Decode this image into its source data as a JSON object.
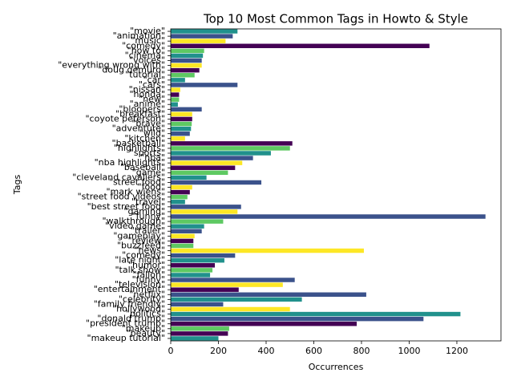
{
  "chart_data": {
    "type": "hbar",
    "title": "Top 10 Most Common Tags in Howto & Style",
    "xlabel": "Occurrences",
    "ylabel": "Tags",
    "categories": [
      "\"movie\"",
      "\"animation\"",
      "\"music\"",
      "\"comedy\"",
      "\"how to\"",
      "\"cinema\"",
      "\"voices\"",
      "\"everything wrong with\"",
      "\"doug demuro\"",
      "\"tutorial\"",
      "\"car\"",
      "\"cars\"",
      "\"nissan\"",
      "\"honda\"",
      "\"new\"",
      "\"anime\"",
      "\"bloopers\"",
      "\"breakfast\"",
      "\"coyote peterson\"",
      "\"brave\"",
      "\"adventure\"",
      "\"wild\"",
      "\"kitchen\"",
      "\"basketball\"",
      "\"highlights\"",
      "\"sports\"",
      "\"nba\"",
      "\"nba highlights\"",
      "\"baseball\"",
      "\"game\"",
      "\"cleveland cavaliers\"",
      "\"street food\"",
      "\"food\"",
      "\"mark wiens\"",
      "\"street food videos\"",
      "\"travel\"",
      "\"best street food\"",
      "\"gaming\"",
      "\"funny\"",
      "\"walkthrough\"",
      "\"video game\"",
      "\"trailer\"",
      "\"gameplay\"",
      "\"review\"",
      "\"buzzfeed\"",
      "\"news\"",
      "\"comedy\"",
      "\"late night\"",
      "\"humor\"",
      "\"talk show\"",
      "\"fallon\"",
      "\"funny\"",
      "\"television\"",
      "\"entertainment\"",
      "\"netflix\"",
      "\"celebrity\"",
      "\"family friendly\"",
      "\"hollywood\"",
      "\"politics\"",
      "\"donald trump\"",
      "\"president trump\"",
      "\"makeup\"",
      "\"beauty\"",
      "\"makeup tutorial\""
    ],
    "values": [
      280,
      260,
      230,
      1085,
      140,
      135,
      130,
      130,
      120,
      100,
      60,
      280,
      40,
      35,
      35,
      30,
      130,
      90,
      90,
      88,
      85,
      80,
      60,
      510,
      500,
      420,
      345,
      300,
      270,
      240,
      150,
      380,
      90,
      80,
      70,
      60,
      295,
      280,
      1320,
      220,
      140,
      130,
      100,
      95,
      95,
      810,
      270,
      225,
      185,
      175,
      165,
      520,
      470,
      285,
      820,
      550,
      220,
      500,
      1215,
      1060,
      780,
      245,
      240,
      200
    ],
    "colors": [
      "#21918c",
      "#3b528b",
      "#fde725",
      "#440154",
      "#5ec962",
      "#21918c",
      "#3b528b",
      "#fde725",
      "#440154",
      "#5ec962",
      "#21918c",
      "#3b528b",
      "#fde725",
      "#440154",
      "#5ec962",
      "#21918c",
      "#3b528b",
      "#fde725",
      "#440154",
      "#5ec962",
      "#21918c",
      "#3b528b",
      "#fde725",
      "#440154",
      "#5ec962",
      "#21918c",
      "#3b528b",
      "#fde725",
      "#440154",
      "#5ec962",
      "#21918c",
      "#3b528b",
      "#fde725",
      "#440154",
      "#5ec962",
      "#21918c",
      "#3b528b",
      "#fde725",
      "#3b528b",
      "#5ec962",
      "#21918c",
      "#3b528b",
      "#fde725",
      "#440154",
      "#5ec962",
      "#fde725",
      "#3b528b",
      "#21918c",
      "#440154",
      "#5ec962",
      "#21918c",
      "#3b528b",
      "#fde725",
      "#440154",
      "#3b528b",
      "#21918c",
      "#3b528b",
      "#fde725",
      "#21918c",
      "#3b528b",
      "#440154",
      "#5ec962",
      "#440154",
      "#21918c"
    ],
    "xlim": [
      0,
      1385
    ],
    "xticks": [
      0,
      200,
      400,
      600,
      800,
      1000,
      1200
    ]
  }
}
